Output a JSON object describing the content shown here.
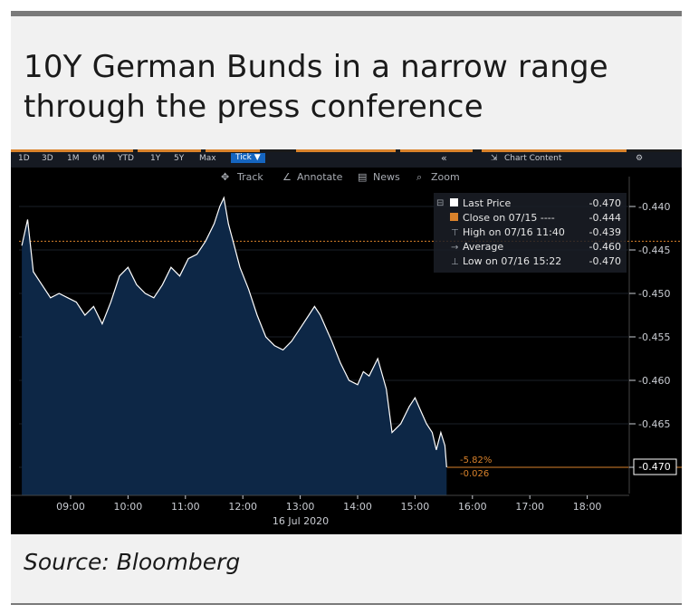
{
  "title_lines": [
    "10Y German Bunds in a narrow range",
    "through the press conference"
  ],
  "source": "Source: Bloomberg",
  "toolbar": {
    "periods": [
      "1D",
      "3D",
      "1M",
      "6M",
      "YTD",
      "1Y",
      "5Y",
      "Max"
    ],
    "selected": "Tick ▼",
    "collapse": "«",
    "chart_content": "Chart Content",
    "gear": "⚙"
  },
  "tools": [
    "Track",
    "Annotate",
    "News",
    "Zoom"
  ],
  "legend": [
    {
      "label": "Last Price",
      "value": "-0.470"
    },
    {
      "label": "Close on 07/15 ----",
      "value": "-0.444"
    },
    {
      "label": "High on 07/16 11:40",
      "value": "-0.439"
    },
    {
      "label": "Average",
      "value": "-0.460"
    },
    {
      "label": "Low on 07/16 15:22",
      "value": "-0.470"
    }
  ],
  "last_label": "-0.470",
  "change_pct": "-5.82%",
  "change_abs": "-0.026",
  "colors": {
    "area": "#0d2746",
    "line": "#ffffff",
    "orange": "#d9822b",
    "bg": "#000000"
  },
  "chart_data": {
    "type": "area",
    "title": "10Y German Bunds in a narrow range through the press conference",
    "xlabel": "16 Jul 2020",
    "x_ticks": [
      "09:00",
      "10:00",
      "11:00",
      "12:00",
      "13:00",
      "14:00",
      "15:00",
      "16:00",
      "17:00",
      "18:00"
    ],
    "y_ticks": [
      "-0.440",
      "-0.445",
      "-0.450",
      "-0.455",
      "-0.460",
      "-0.465",
      "-0.470"
    ],
    "ylim": [
      -0.4725,
      -0.4375
    ],
    "x_hours": [
      8.2,
      9.8
    ],
    "previous_close": -0.444,
    "last_price": -0.47,
    "x": [
      8.15,
      8.25,
      8.35,
      8.5,
      8.65,
      8.8,
      8.95,
      9.1,
      9.25,
      9.4,
      9.55,
      9.7,
      9.85,
      10.0,
      10.15,
      10.3,
      10.45,
      10.6,
      10.75,
      10.9,
      11.05,
      11.2,
      11.35,
      11.5,
      11.6,
      11.67,
      11.75,
      11.85,
      11.95,
      12.1,
      12.25,
      12.4,
      12.55,
      12.7,
      12.85,
      13.0,
      13.15,
      13.25,
      13.35,
      13.45,
      13.55,
      13.7,
      13.85,
      14.0,
      14.1,
      14.2,
      14.35,
      14.5,
      14.6,
      14.75,
      14.9,
      15.0,
      15.1,
      15.2,
      15.3,
      15.37,
      15.45,
      15.52,
      15.55
    ],
    "y": [
      -0.4445,
      -0.4415,
      -0.4475,
      -0.449,
      -0.4505,
      -0.45,
      -0.4505,
      -0.451,
      -0.4525,
      -0.4515,
      -0.4535,
      -0.451,
      -0.448,
      -0.447,
      -0.449,
      -0.45,
      -0.4505,
      -0.449,
      -0.447,
      -0.448,
      -0.446,
      -0.4455,
      -0.444,
      -0.442,
      -0.44,
      -0.439,
      -0.442,
      -0.4445,
      -0.447,
      -0.4495,
      -0.4525,
      -0.455,
      -0.456,
      -0.4565,
      -0.4555,
      -0.454,
      -0.4525,
      -0.4515,
      -0.4525,
      -0.454,
      -0.4555,
      -0.458,
      -0.46,
      -0.4605,
      -0.459,
      -0.4595,
      -0.4575,
      -0.461,
      -0.466,
      -0.465,
      -0.463,
      -0.462,
      -0.4635,
      -0.465,
      -0.466,
      -0.468,
      -0.466,
      -0.4675,
      -0.47
    ]
  }
}
